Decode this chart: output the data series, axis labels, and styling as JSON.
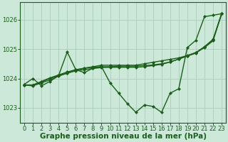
{
  "background_color": "#cce8d8",
  "plot_bg_color": "#cce8d8",
  "grid_color": "#aaccbb",
  "line_color": "#1a5e1a",
  "xlabel": "Graphe pression niveau de la mer (hPa)",
  "xlim": [
    -0.5,
    23.5
  ],
  "ylim": [
    1022.5,
    1026.6
  ],
  "yticks": [
    1023,
    1024,
    1025,
    1026
  ],
  "xticks": [
    0,
    1,
    2,
    3,
    4,
    5,
    6,
    7,
    8,
    9,
    10,
    11,
    12,
    13,
    14,
    15,
    16,
    17,
    18,
    19,
    20,
    21,
    22,
    23
  ],
  "series": [
    [
      1023.8,
      1024.0,
      1023.75,
      1023.9,
      1024.1,
      1024.9,
      1024.3,
      1024.2,
      1024.35,
      1024.4,
      1023.85,
      1023.5,
      1023.15,
      1022.85,
      1023.1,
      1023.05,
      1022.85,
      1023.5,
      1023.65,
      1025.05,
      1025.3,
      1026.1,
      1026.15,
      1026.2
    ],
    [
      1023.78,
      1023.75,
      1023.85,
      1023.95,
      1024.08,
      1024.18,
      1024.28,
      1024.35,
      1024.4,
      1024.45,
      1024.45,
      1024.45,
      1024.45,
      1024.45,
      1024.5,
      1024.55,
      1024.6,
      1024.65,
      1024.7,
      1024.78,
      1024.88,
      1025.05,
      1025.28,
      1026.2
    ],
    [
      1023.78,
      1023.78,
      1023.88,
      1024.0,
      1024.1,
      1024.18,
      1024.26,
      1024.3,
      1024.34,
      1024.37,
      1024.38,
      1024.38,
      1024.38,
      1024.38,
      1024.4,
      1024.44,
      1024.48,
      1024.56,
      1024.66,
      1024.77,
      1024.88,
      1025.08,
      1025.33,
      1026.2
    ],
    [
      1023.78,
      1023.78,
      1023.9,
      1024.02,
      1024.12,
      1024.22,
      1024.3,
      1024.35,
      1024.38,
      1024.4,
      1024.4,
      1024.42,
      1024.42,
      1024.42,
      1024.44,
      1024.46,
      1024.5,
      1024.56,
      1024.66,
      1024.76,
      1024.86,
      1025.07,
      1025.32,
      1026.2
    ]
  ],
  "marker": "D",
  "markersize": 2.0,
  "linewidth": 1.0,
  "xlabel_fontsize": 7.5,
  "xlabel_bold": true,
  "tick_fontsize": 6.0,
  "figsize": [
    3.2,
    2.0
  ],
  "dpi": 100
}
